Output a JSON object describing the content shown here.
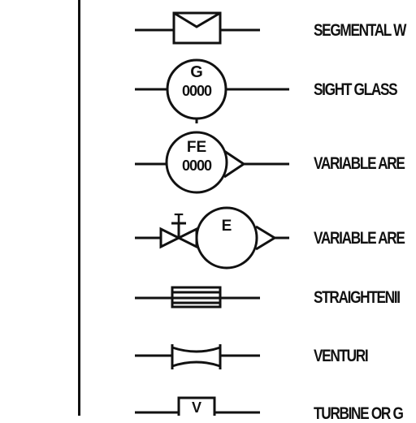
{
  "colors": {
    "line": "#111111",
    "background": "#ffffff"
  },
  "symbols": [
    {
      "label": "SEGMENTAL W",
      "letters": []
    },
    {
      "label": "SIGHT GLASS",
      "letters": [
        "G",
        "0000"
      ]
    },
    {
      "label": "VARIABLE ARE",
      "letters": [
        "FE",
        "0000"
      ]
    },
    {
      "label": "VARIABLE ARE",
      "letters": [
        "T",
        "E"
      ]
    },
    {
      "label": "STRAIGHTENII",
      "letters": []
    },
    {
      "label": "VENTURI",
      "letters": []
    },
    {
      "label": "TURBINE OR G",
      "letters": [
        "V"
      ]
    }
  ]
}
